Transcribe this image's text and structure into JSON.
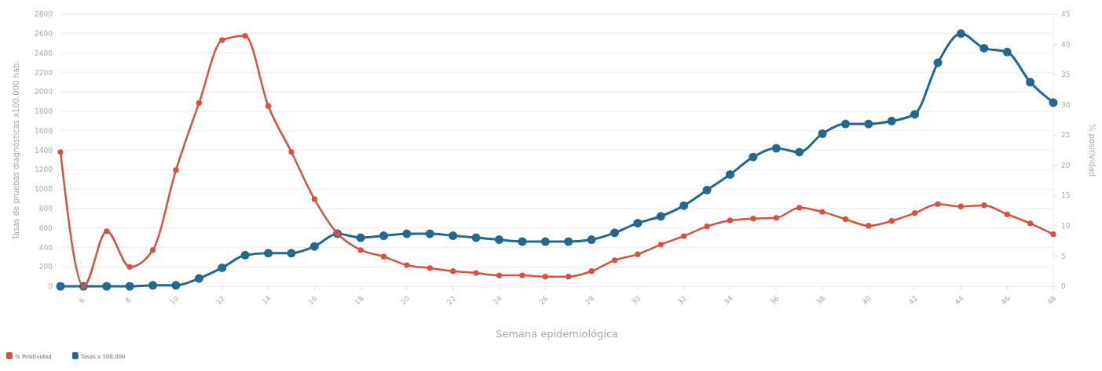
{
  "chart_data": {
    "type": "line",
    "xlabel": "Semana epidemiológica",
    "ylabel": "Tasas de pruebas diagnósticas x100.000 hab.",
    "y2label": "% positividad",
    "x": [
      5,
      6,
      7,
      8,
      9,
      10,
      11,
      12,
      13,
      14,
      15,
      16,
      17,
      18,
      19,
      20,
      21,
      22,
      23,
      24,
      25,
      26,
      27,
      28,
      29,
      30,
      31,
      32,
      33,
      34,
      35,
      36,
      37,
      38,
      39,
      40,
      41,
      42,
      43,
      44,
      45,
      46,
      47,
      48
    ],
    "series": [
      {
        "name": "% Positividad",
        "color": "#d9503f",
        "axis": "y2",
        "values": [
          22.2,
          0,
          9.1,
          3.2,
          6.0,
          19.2,
          30.3,
          40.7,
          41.4,
          29.8,
          22.2,
          14.4,
          8.7,
          6.0,
          4.9,
          3.5,
          3.0,
          2.5,
          2.2,
          1.8,
          1.8,
          1.6,
          1.6,
          2.5,
          4.3,
          5.3,
          6.9,
          8.3,
          9.9,
          10.9,
          11.2,
          11.3,
          13.0,
          12.3,
          11.1,
          10.0,
          10.8,
          12.1,
          13.6,
          13.2,
          13.4,
          11.9,
          10.4,
          8.6
        ]
      },
      {
        "name": "Tasas x 100.000",
        "color": "#23698f",
        "values": [
          0,
          0,
          0,
          0,
          10,
          10,
          80,
          190,
          320,
          340,
          340,
          410,
          540,
          500,
          520,
          540,
          540,
          520,
          500,
          480,
          460,
          460,
          460,
          480,
          550,
          650,
          720,
          830,
          990,
          1150,
          1330,
          1420,
          1380,
          1570,
          1670,
          1670,
          1700,
          1770,
          2300,
          2600,
          2450,
          2410,
          2100,
          1890
        ]
      }
    ],
    "xlim": [
      5,
      48
    ],
    "xticks": [
      6,
      8,
      10,
      12,
      14,
      16,
      18,
      20,
      22,
      24,
      26,
      28,
      30,
      32,
      34,
      36,
      38,
      40,
      42,
      44,
      46,
      48
    ],
    "ylim": [
      0,
      2800
    ],
    "yticks": [
      0,
      200,
      400,
      600,
      800,
      1000,
      1200,
      1400,
      1600,
      1800,
      2000,
      2200,
      2400,
      2600,
      2800
    ],
    "y2lim": [
      0,
      45
    ],
    "y2ticks": [
      0,
      5,
      10,
      15,
      20,
      25,
      30,
      35,
      40,
      45
    ],
    "grid": "y",
    "legend": "bottom left",
    "marker": "circle",
    "line_style": "solid"
  }
}
